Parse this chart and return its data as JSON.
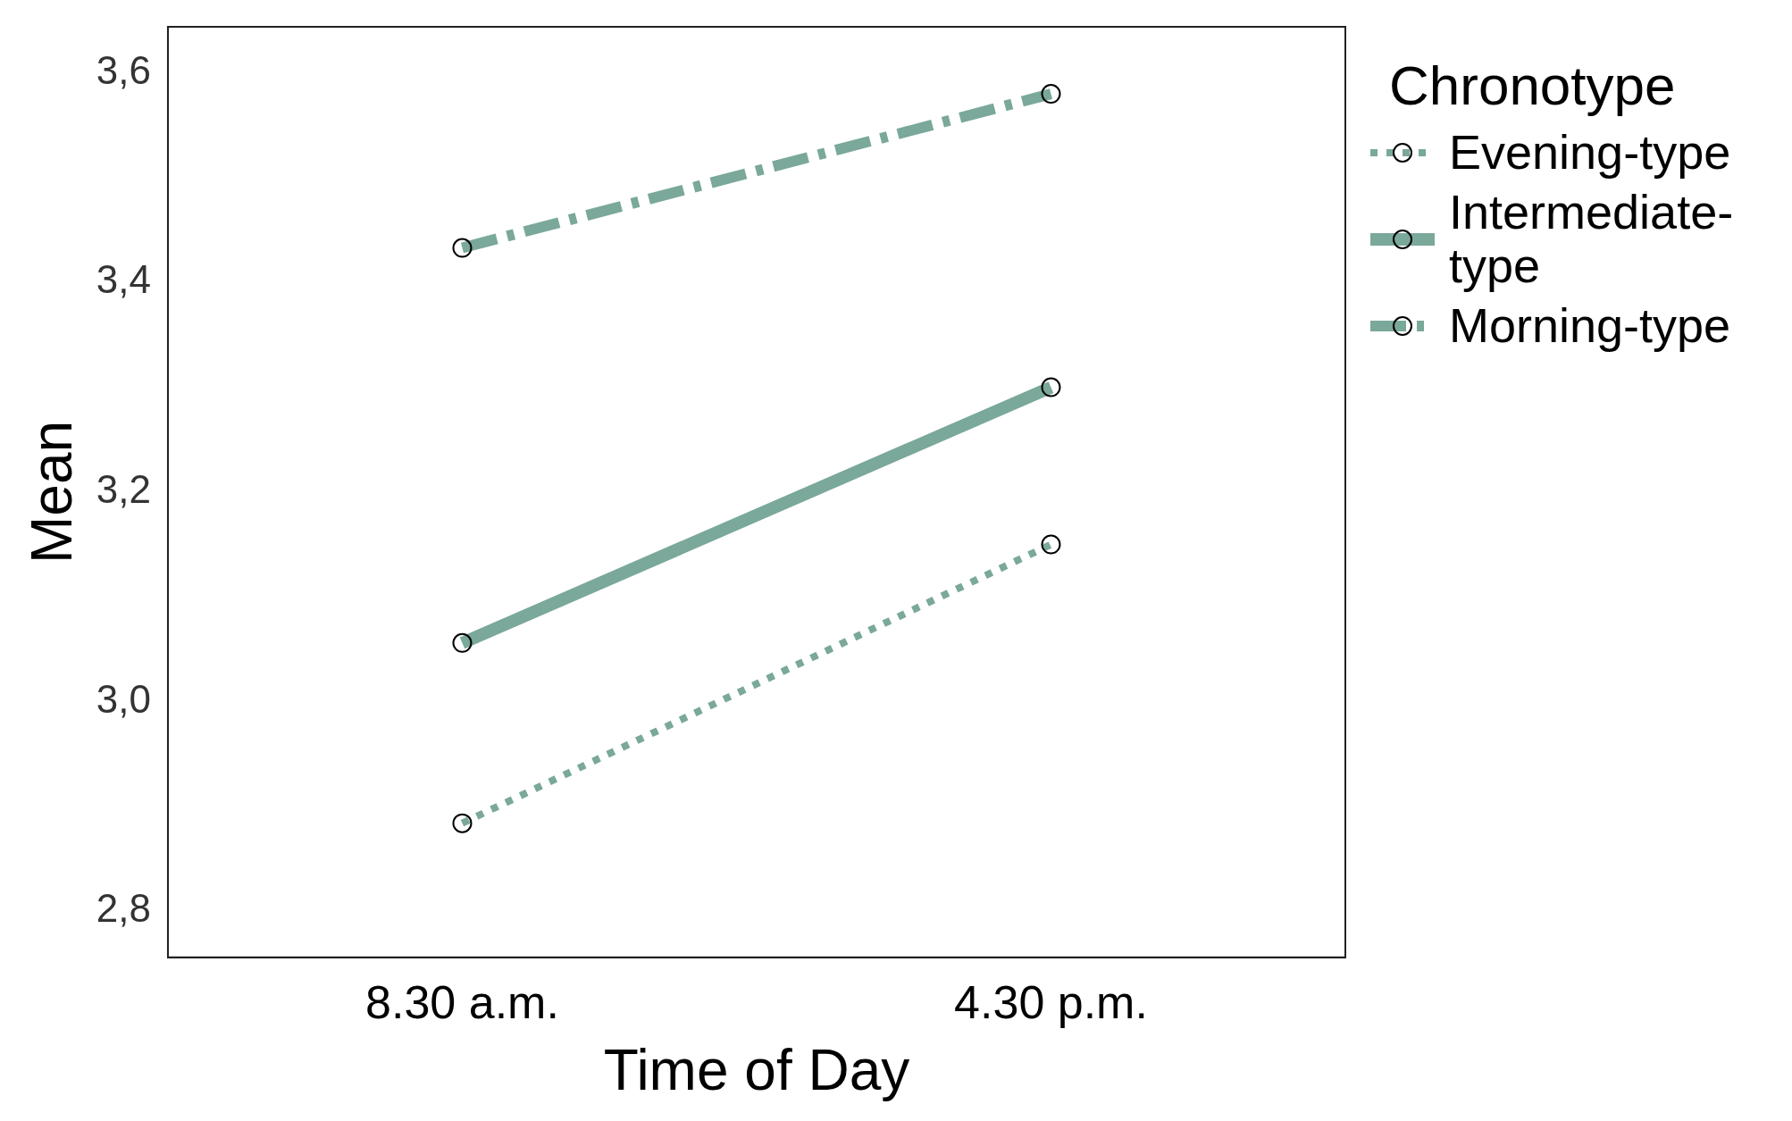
{
  "chart_data": {
    "type": "line",
    "xlabel": "Time of Day",
    "ylabel": "Mean",
    "legend_title": "Chronotype",
    "categories": [
      "8.30 a.m.",
      "4.30 p.m."
    ],
    "series": [
      {
        "name": "Evening-type",
        "color": "#7aa89a",
        "values": [
          2.884,
          3.15
        ],
        "line_style": "dotted"
      },
      {
        "name": "Intermediate-type",
        "color": "#7aa89a",
        "values": [
          3.056,
          3.3
        ],
        "line_style": "solid"
      },
      {
        "name": "Morning-type",
        "color": "#7aa89a",
        "values": [
          3.433,
          3.58
        ],
        "line_style": "dashed"
      }
    ],
    "ylim": [
      2.756,
      3.644
    ],
    "yticks": [
      {
        "value": 2.8,
        "label": "2,8"
      },
      {
        "value": 3.0,
        "label": "3,0"
      },
      {
        "value": 3.2,
        "label": "3,2"
      },
      {
        "value": 3.4,
        "label": "3,4"
      },
      {
        "value": 3.6,
        "label": "3,6"
      }
    ],
    "grid": false,
    "legend": "right",
    "marker": "circle"
  }
}
